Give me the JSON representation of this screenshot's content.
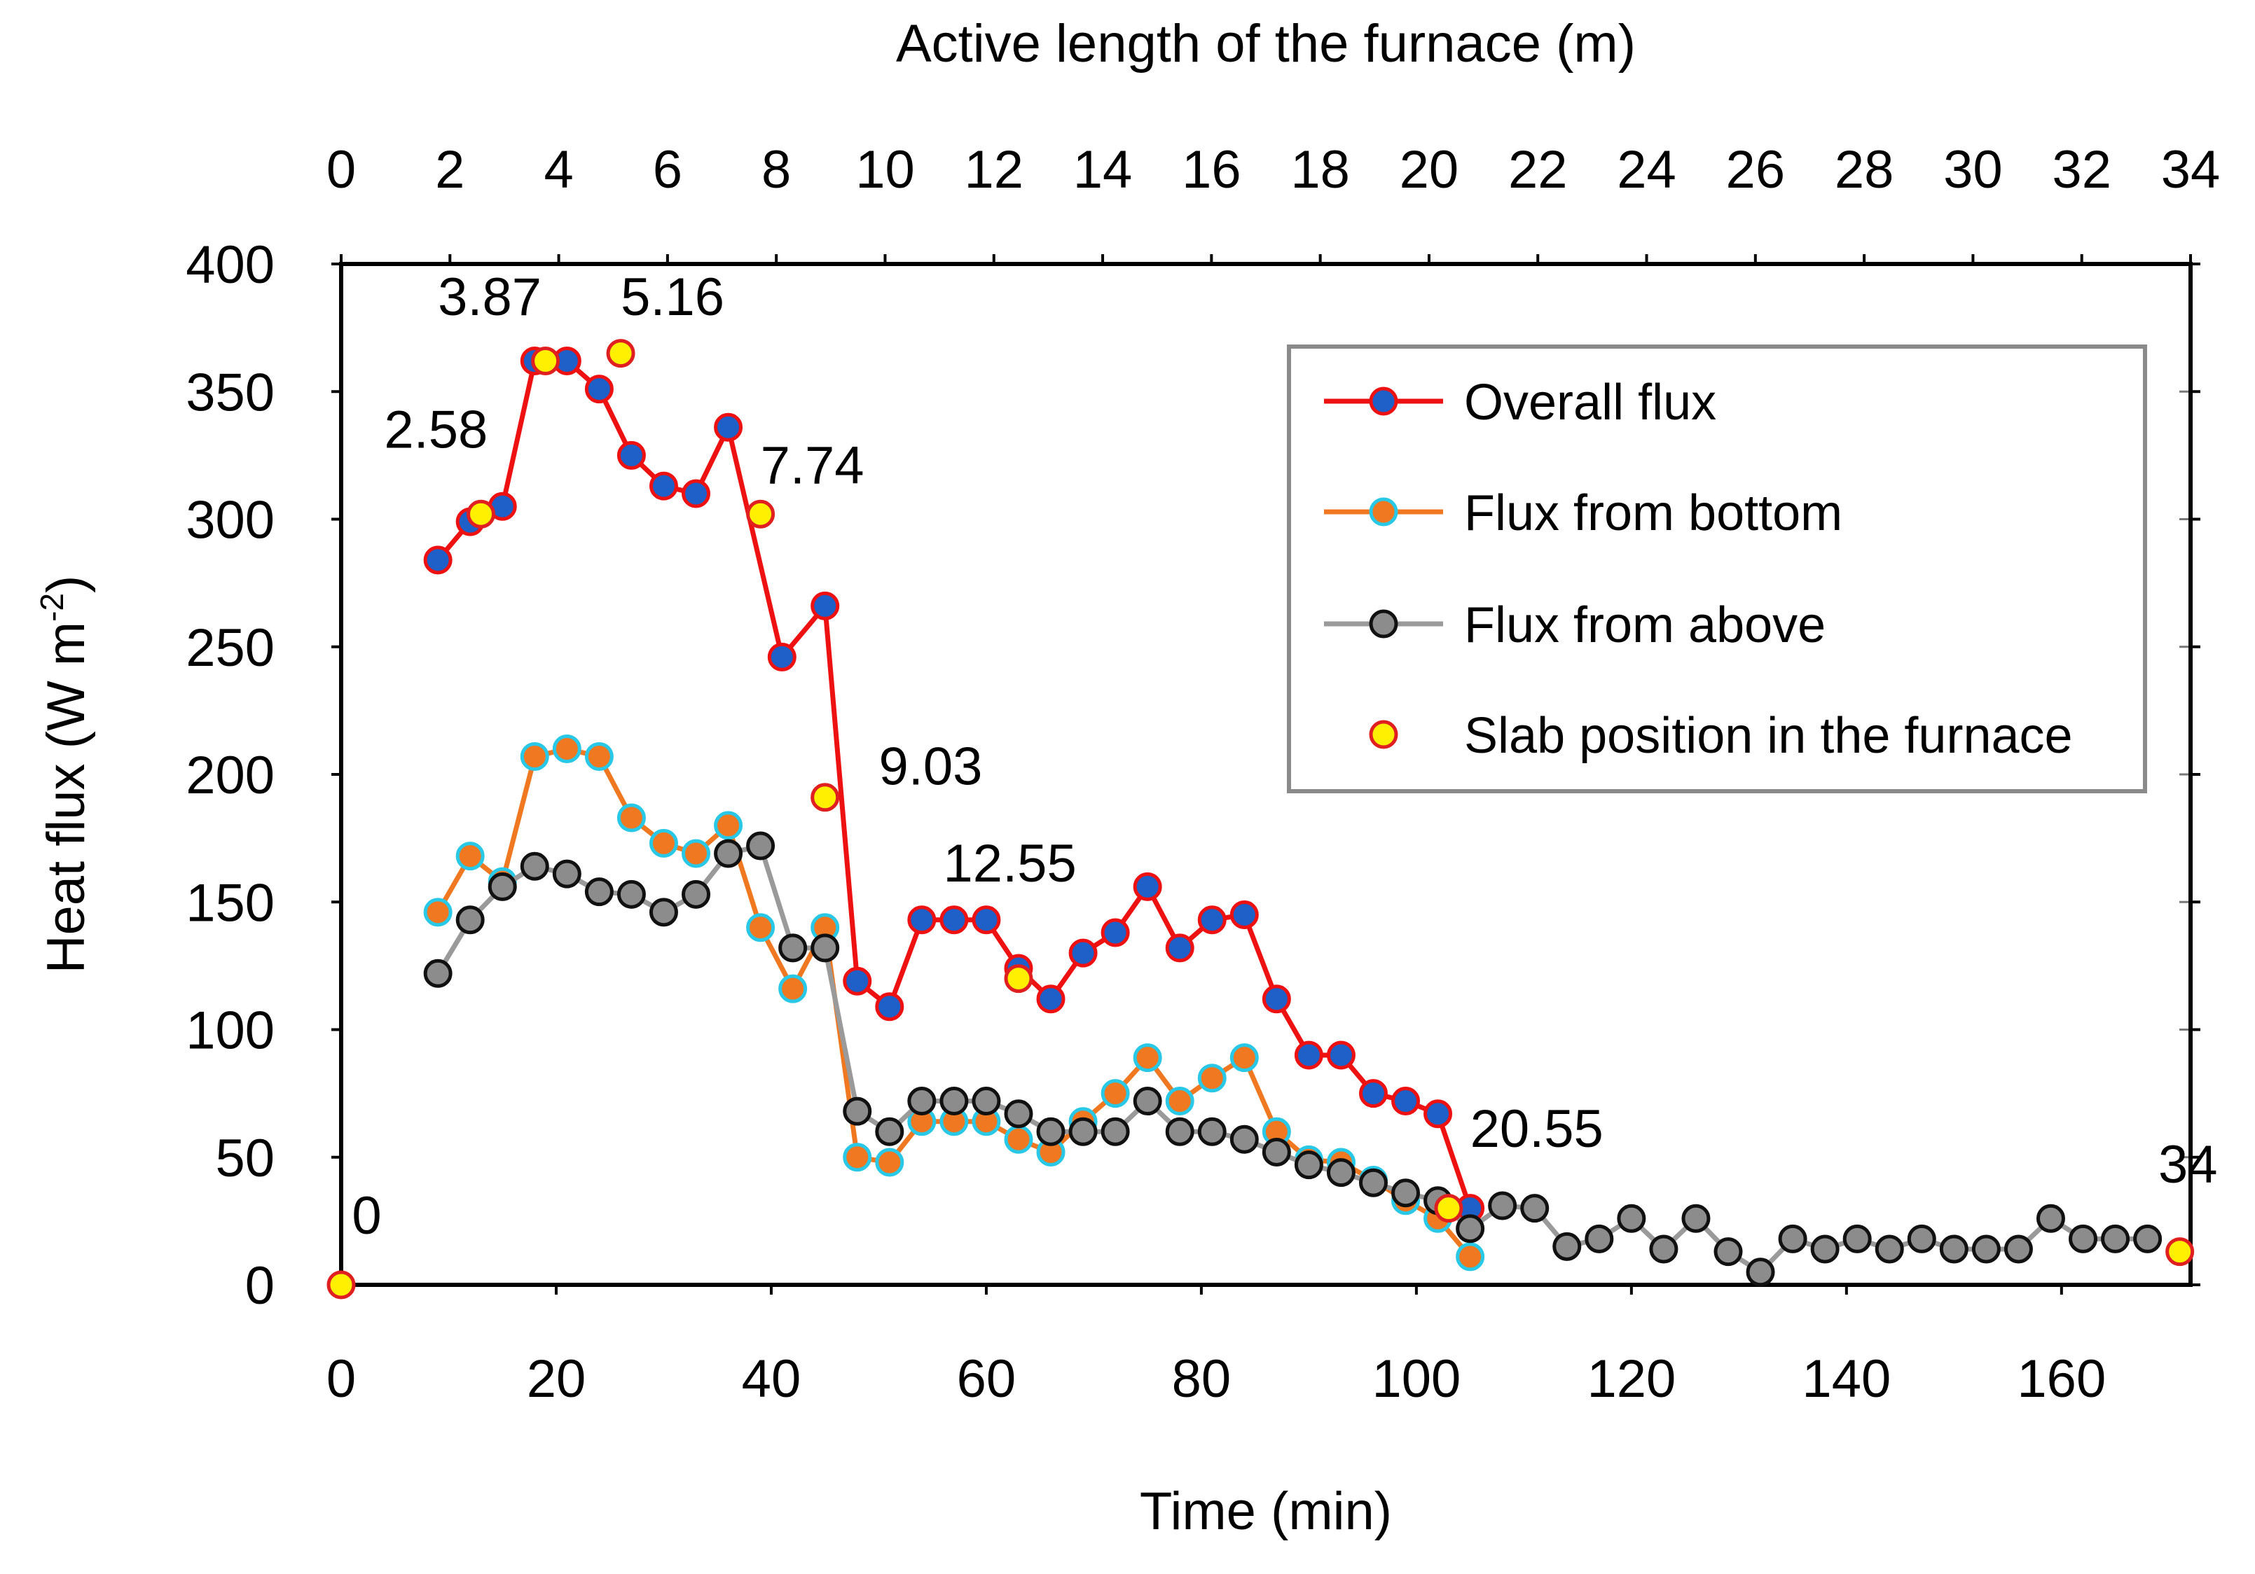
{
  "chart_data": {
    "type": "line",
    "top_axis": {
      "label": "Active length of the furnace (m)",
      "range": [
        0,
        34
      ],
      "ticks": [
        "0",
        "2",
        "4",
        "6",
        "8",
        "10",
        "12",
        "14",
        "16",
        "18",
        "20",
        "22",
        "24",
        "26",
        "28",
        "30",
        "32",
        "34"
      ]
    },
    "xlabel": "Time (min)",
    "xlim": [
      0,
      172
    ],
    "xticks": [
      "0",
      "20",
      "40",
      "60",
      "80",
      "100",
      "120",
      "140",
      "160"
    ],
    "ylabel_main": "Heat flux (W m",
    "ylabel_sup": "-2",
    "ylabel_close": ")",
    "ylim": [
      0,
      400
    ],
    "yticks": [
      "0",
      "50",
      "100",
      "150",
      "200",
      "250",
      "300",
      "350",
      "400"
    ],
    "legend_position": "top-right",
    "series": [
      {
        "name": "Overall flux",
        "line_color": "#ee1111",
        "marker_color": "#1e5fc8",
        "marker_edge": "#ee1111",
        "x": [
          9,
          12,
          15,
          18,
          21,
          24,
          27,
          30,
          33,
          36,
          41,
          45,
          48,
          51,
          54,
          57,
          60,
          63,
          66,
          69,
          72,
          75,
          78,
          81,
          84,
          87,
          90,
          93,
          96,
          99,
          102,
          105
        ],
        "y": [
          284,
          299,
          305,
          362,
          362,
          351,
          325,
          313,
          310,
          336,
          246,
          266,
          119,
          109,
          143,
          143,
          143,
          124,
          112,
          130,
          138,
          156,
          132,
          143,
          145,
          112,
          90,
          90,
          75,
          72,
          67,
          30
        ]
      },
      {
        "name": "Flux from bottom",
        "line_color": "#f07820",
        "marker_color": "#f07820",
        "marker_edge": "#28c8e6",
        "x": [
          9,
          12,
          15,
          18,
          21,
          24,
          27,
          30,
          33,
          36,
          39,
          42,
          45,
          48,
          51,
          54,
          57,
          60,
          63,
          66,
          69,
          72,
          75,
          78,
          81,
          84,
          87,
          90,
          93,
          96,
          99,
          102,
          105
        ],
        "y": [
          146,
          168,
          158,
          207,
          210,
          207,
          183,
          173,
          169,
          180,
          140,
          116,
          140,
          50,
          48,
          64,
          64,
          64,
          57,
          52,
          64,
          75,
          89,
          72,
          81,
          89,
          60,
          49,
          48,
          41,
          33,
          26,
          11
        ]
      },
      {
        "name": "Flux from above",
        "line_color": "#9a9a9a",
        "marker_color": "#8c8c8c",
        "marker_edge": "#111111",
        "x": [
          9,
          12,
          15,
          18,
          21,
          24,
          27,
          30,
          33,
          36,
          39,
          42,
          45,
          48,
          51,
          54,
          57,
          60,
          63,
          66,
          69,
          72,
          75,
          78,
          81,
          84,
          87,
          90,
          93,
          96,
          99,
          102,
          105,
          108,
          111,
          114,
          117,
          120,
          123,
          126,
          129,
          132,
          135,
          138,
          141,
          144,
          147,
          150,
          153,
          156,
          159,
          162,
          165,
          168
        ],
        "y": [
          122,
          143,
          156,
          164,
          161,
          154,
          153,
          146,
          153,
          169,
          172,
          132,
          132,
          68,
          60,
          72,
          72,
          72,
          67,
          60,
          60,
          60,
          72,
          60,
          60,
          57,
          52,
          47,
          44,
          40,
          36,
          33,
          22,
          31,
          30,
          15,
          18,
          26,
          14,
          26,
          13,
          5,
          18,
          14,
          18,
          14,
          18,
          14,
          14,
          14,
          26,
          18,
          18,
          18
        ]
      },
      {
        "name": "Slab position in the furnace",
        "line_color": "none",
        "marker_color": "#ffef00",
        "marker_edge": "#e02020",
        "x": [
          0,
          13,
          19,
          26,
          39,
          45,
          63,
          103,
          171
        ],
        "y": [
          0,
          302,
          362,
          365,
          302,
          191,
          120,
          30,
          13
        ]
      }
    ],
    "annotations": [
      {
        "text": "0",
        "x": 1,
        "y": 20
      },
      {
        "text": "2.58",
        "x": 4,
        "y": 328
      },
      {
        "text": "3.87",
        "x": 9,
        "y": 380
      },
      {
        "text": "5.16",
        "x": 26,
        "y": 380
      },
      {
        "text": "7.74",
        "x": 39,
        "y": 314
      },
      {
        "text": "9.03",
        "x": 50,
        "y": 196
      },
      {
        "text": "12.55",
        "x": 56,
        "y": 158
      },
      {
        "text": "20.55",
        "x": 105,
        "y": 54
      },
      {
        "text": "34",
        "x": 169,
        "y": 40
      }
    ]
  }
}
